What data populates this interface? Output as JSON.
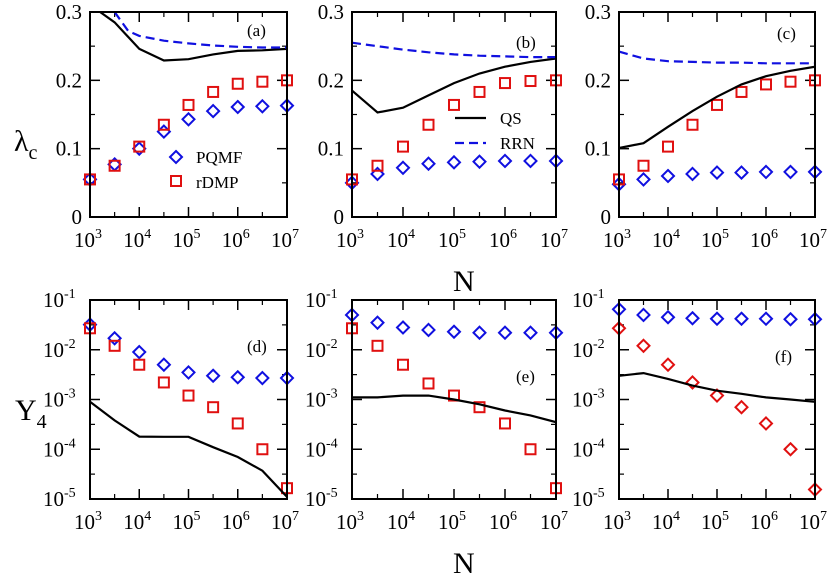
{
  "chart_data": [
    {
      "panel": "(a)",
      "type": "scatter+line",
      "xscale": "log",
      "yscale": "linear",
      "xlim": [
        1000,
        10000000
      ],
      "ylim": [
        0,
        0.3
      ],
      "ylabel": "λc",
      "xlabel": "",
      "yticks": [
        "0",
        "0.1",
        "0.2",
        "0.3"
      ],
      "legend": [
        "PQMF",
        "rDMP"
      ],
      "series": [
        {
          "name": "PQMF",
          "marker": "diamond",
          "color": "#1010e0",
          "x": [
            1000,
            3162,
            10000,
            31623,
            100000,
            316228,
            1000000,
            3162278,
            10000000
          ],
          "y": [
            0.055,
            0.077,
            0.1,
            0.125,
            0.143,
            0.155,
            0.161,
            0.162,
            0.163
          ]
        },
        {
          "name": "rDMP",
          "marker": "square",
          "color": "#e01010",
          "x": [
            1000,
            3162,
            10000,
            31623,
            100000,
            316228,
            1000000,
            3162278,
            10000000
          ],
          "y": [
            0.055,
            0.075,
            0.103,
            0.135,
            0.164,
            0.183,
            0.195,
            0.198,
            0.2
          ]
        },
        {
          "name": "QS",
          "line": "solid",
          "color": "#000000",
          "x": [
            1600,
            3162,
            10000,
            31623,
            100000,
            316228,
            1000000,
            3162278,
            10000000
          ],
          "y": [
            0.3,
            0.285,
            0.246,
            0.229,
            0.231,
            0.238,
            0.243,
            0.244,
            0.246
          ]
        },
        {
          "name": "RRN",
          "line": "dashed",
          "color": "#1010e0",
          "x": [
            3162,
            6000,
            10000,
            31623,
            100000,
            316228,
            1000000,
            3162278,
            10000000
          ],
          "y": [
            0.3,
            0.272,
            0.265,
            0.258,
            0.254,
            0.251,
            0.249,
            0.248,
            0.248
          ]
        }
      ]
    },
    {
      "panel": "(b)",
      "type": "scatter+line",
      "xscale": "log",
      "yscale": "linear",
      "xlim": [
        1000,
        10000000
      ],
      "ylim": [
        0,
        0.3
      ],
      "yticks": [
        "0",
        "0.1",
        "0.2",
        "0.3"
      ],
      "legend": [
        "QS",
        "RRN"
      ],
      "series": [
        {
          "name": "PQMF",
          "marker": "diamond",
          "color": "#1010e0",
          "x": [
            1000,
            3162,
            10000,
            31623,
            100000,
            316228,
            1000000,
            3162278,
            10000000
          ],
          "y": [
            0.05,
            0.063,
            0.072,
            0.078,
            0.08,
            0.081,
            0.082,
            0.082,
            0.082
          ]
        },
        {
          "name": "rDMP",
          "marker": "square",
          "color": "#e01010",
          "x": [
            1000,
            3162,
            10000,
            31623,
            100000,
            316228,
            1000000,
            3162278,
            10000000
          ],
          "y": [
            0.055,
            0.075,
            0.103,
            0.135,
            0.164,
            0.183,
            0.196,
            0.199,
            0.2
          ]
        },
        {
          "name": "QS",
          "line": "solid",
          "color": "#000000",
          "x": [
            1000,
            3162,
            10000,
            31623,
            100000,
            316228,
            1000000,
            3162278,
            10000000
          ],
          "y": [
            0.185,
            0.153,
            0.16,
            0.178,
            0.196,
            0.21,
            0.22,
            0.227,
            0.232
          ]
        },
        {
          "name": "RRN",
          "line": "dashed",
          "color": "#1010e0",
          "x": [
            1000,
            3162,
            10000,
            31623,
            100000,
            316228,
            1000000,
            3162278,
            10000000
          ],
          "y": [
            0.255,
            0.25,
            0.245,
            0.241,
            0.238,
            0.236,
            0.235,
            0.234,
            0.234
          ]
        }
      ]
    },
    {
      "panel": "(c)",
      "type": "scatter+line",
      "xscale": "log",
      "yscale": "linear",
      "xlim": [
        1000,
        10000000
      ],
      "ylim": [
        0,
        0.3
      ],
      "yticks": [
        "0",
        "0.1",
        "0.2",
        "0.3"
      ],
      "series": [
        {
          "name": "PQMF",
          "marker": "diamond",
          "color": "#1010e0",
          "x": [
            1000,
            3162,
            10000,
            31623,
            100000,
            316228,
            1000000,
            3162278,
            10000000
          ],
          "y": [
            0.048,
            0.055,
            0.06,
            0.063,
            0.065,
            0.065,
            0.066,
            0.066,
            0.066
          ]
        },
        {
          "name": "rDMP",
          "marker": "square",
          "color": "#e01010",
          "x": [
            1000,
            3162,
            10000,
            31623,
            100000,
            316228,
            1000000,
            3162278,
            10000000
          ],
          "y": [
            0.055,
            0.075,
            0.103,
            0.135,
            0.164,
            0.183,
            0.194,
            0.198,
            0.2
          ]
        },
        {
          "name": "QS",
          "line": "solid",
          "color": "#000000",
          "x": [
            1000,
            3162,
            10000,
            31623,
            100000,
            316228,
            1000000,
            3162278,
            10000000
          ],
          "y": [
            0.101,
            0.108,
            0.132,
            0.155,
            0.176,
            0.194,
            0.206,
            0.214,
            0.22
          ]
        },
        {
          "name": "RRN",
          "line": "dashed",
          "color": "#1010e0",
          "x": [
            1000,
            3162,
            10000,
            31623,
            100000,
            316228,
            1000000,
            3162278,
            10000000
          ],
          "y": [
            0.242,
            0.232,
            0.228,
            0.227,
            0.226,
            0.226,
            0.225,
            0.225,
            0.225
          ]
        }
      ]
    },
    {
      "panel": "(d)",
      "type": "scatter+line",
      "xscale": "log",
      "yscale": "log",
      "xlim": [
        1000,
        10000000
      ],
      "ylim": [
        1e-05,
        0.1
      ],
      "ylabel": "Y4",
      "xlabel": "N",
      "yticks": [
        "10^-5",
        "10^-4",
        "10^-3",
        "10^-2",
        "10^-1"
      ],
      "series": [
        {
          "name": "PQMF",
          "marker": "diamond",
          "color": "#1010e0",
          "x": [
            1000,
            3162,
            10000,
            31623,
            100000,
            316228,
            1000000,
            3162278,
            10000000
          ],
          "y": [
            0.032,
            0.017,
            0.009,
            0.005,
            0.0035,
            0.003,
            0.0028,
            0.0027,
            0.0027
          ]
        },
        {
          "name": "rDMP",
          "marker": "square",
          "color": "#e01010",
          "x": [
            1000,
            3162,
            10000,
            31623,
            100000,
            316228,
            1000000,
            3162278,
            10000000
          ],
          "y": [
            0.027,
            0.012,
            0.005,
            0.0022,
            0.0012,
            0.0007,
            0.00033,
            0.0001,
            1.65e-05
          ]
        },
        {
          "name": "QS",
          "line": "solid",
          "color": "#000000",
          "x": [
            1000,
            3162,
            10000,
            31623,
            100000,
            316228,
            1000000,
            3162278,
            10000000
          ],
          "y": [
            0.0009,
            0.00038,
            0.00018,
            0.000178,
            0.000178,
            0.00011,
            7e-05,
            3.7e-05,
            1.1e-05
          ]
        }
      ]
    },
    {
      "panel": "(e)",
      "type": "scatter+line",
      "xscale": "log",
      "yscale": "log",
      "xlim": [
        1000,
        10000000
      ],
      "ylim": [
        1e-05,
        0.1
      ],
      "xlabel": "N",
      "yticks": [
        "10^-5",
        "10^-4",
        "10^-3",
        "10^-2",
        "10^-1"
      ],
      "series": [
        {
          "name": "PQMF",
          "marker": "diamond",
          "color": "#1010e0",
          "x": [
            1000,
            3162,
            10000,
            31623,
            100000,
            316228,
            1000000,
            3162278,
            10000000
          ],
          "y": [
            0.05,
            0.035,
            0.028,
            0.025,
            0.023,
            0.022,
            0.022,
            0.022,
            0.022
          ]
        },
        {
          "name": "rDMP",
          "marker": "square",
          "color": "#e01010",
          "x": [
            1000,
            3162,
            10000,
            31623,
            100000,
            316228,
            1000000,
            3162278,
            10000000
          ],
          "y": [
            0.027,
            0.012,
            0.005,
            0.0021,
            0.0012,
            0.0007,
            0.00033,
            0.0001,
            1.65e-05
          ]
        },
        {
          "name": "QS",
          "line": "solid",
          "color": "#000000",
          "x": [
            1000,
            3162,
            10000,
            31623,
            100000,
            316228,
            1000000,
            3162278,
            10000000
          ],
          "y": [
            0.0011,
            0.0011,
            0.0012,
            0.0012,
            0.001,
            0.0008,
            0.0006,
            0.00048,
            0.00035
          ]
        }
      ]
    },
    {
      "panel": "(f)",
      "type": "scatter+line",
      "xscale": "log",
      "yscale": "log",
      "xlim": [
        1000,
        10000000
      ],
      "ylim": [
        1e-05,
        0.1
      ],
      "yticks": [
        "10^-5",
        "10^-4",
        "10^-3",
        "10^-2",
        "10^-1"
      ],
      "series": [
        {
          "name": "PQMF",
          "marker": "diamond",
          "color": "#1010e0",
          "x": [
            1000,
            3162,
            10000,
            31623,
            100000,
            316228,
            1000000,
            3162278,
            10000000
          ],
          "y": [
            0.065,
            0.05,
            0.045,
            0.043,
            0.042,
            0.042,
            0.042,
            0.041,
            0.041
          ]
        },
        {
          "name": "rDMP",
          "marker": "diamond",
          "color": "#e01010",
          "x": [
            1000,
            3162,
            10000,
            31623,
            100000,
            316228,
            1000000,
            3162278,
            10000000
          ],
          "y": [
            0.027,
            0.012,
            0.005,
            0.0022,
            0.0012,
            0.0007,
            0.00033,
            0.0001,
            1.55e-05
          ]
        },
        {
          "name": "QS",
          "line": "solid",
          "color": "#000000",
          "x": [
            1000,
            3162,
            10000,
            31623,
            100000,
            316228,
            1000000,
            3162278,
            10000000
          ],
          "y": [
            0.003,
            0.0034,
            0.0026,
            0.0019,
            0.0015,
            0.0013,
            0.0011,
            0.001,
            0.0009
          ]
        }
      ]
    }
  ],
  "labels": {
    "ylabel_top_main": "λ",
    "ylabel_top_sub": "c",
    "ylabel_bottom_main": "Y",
    "ylabel_bottom_sub": "4",
    "xlabel": "N",
    "legend_a": [
      "PQMF",
      "rDMP"
    ],
    "legend_b": [
      "QS",
      "RRN"
    ]
  }
}
